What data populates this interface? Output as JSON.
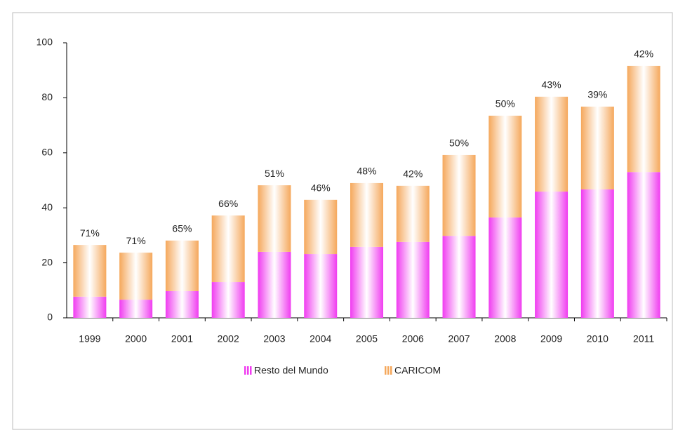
{
  "chart_data": {
    "type": "stacked_bar",
    "categories": [
      "1999",
      "2000",
      "2001",
      "2002",
      "2003",
      "2004",
      "2005",
      "2006",
      "2007",
      "2008",
      "2009",
      "2010",
      "2011"
    ],
    "series": [
      {
        "name": "Resto del Mundo",
        "color": "#f03cf0",
        "values": [
          7.7,
          6.6,
          9.7,
          13,
          24,
          23.2,
          25.8,
          27.6,
          29.8,
          36.5,
          45.9,
          46.7,
          53
        ]
      },
      {
        "name": "CARICOM",
        "color": "#f5a85c",
        "values": [
          18.8,
          17.1,
          18.4,
          24.2,
          24.2,
          19.7,
          23.2,
          20.4,
          29.4,
          37,
          34.5,
          30.1,
          38.6
        ]
      }
    ],
    "annotations": [
      "71%",
      "71%",
      "65%",
      "66%",
      "51%",
      "46%",
      "48%",
      "42%",
      "50%",
      "50%",
      "43%",
      "39%",
      "42%"
    ],
    "ylim": [
      0,
      100
    ],
    "yticks": [
      0,
      20,
      40,
      60,
      80,
      100
    ],
    "grid": false,
    "legend": "bottom"
  }
}
